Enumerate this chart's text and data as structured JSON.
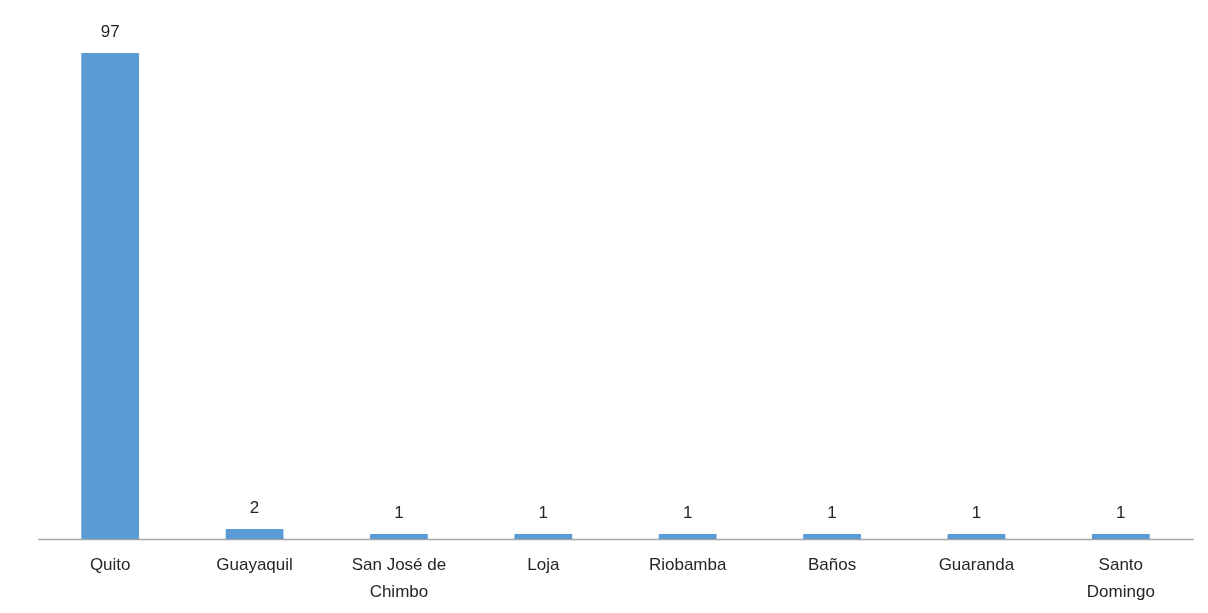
{
  "chart_data": {
    "type": "bar",
    "categories": [
      "Quito",
      "Guayaquil",
      "San José de Chimbo",
      "Loja",
      "Riobamba",
      "Baños",
      "Guaranda",
      "Santo Domingo"
    ],
    "values": [
      97,
      2,
      1,
      1,
      1,
      1,
      1,
      1
    ],
    "color": "#5b9bd5",
    "data_labels": true
  }
}
